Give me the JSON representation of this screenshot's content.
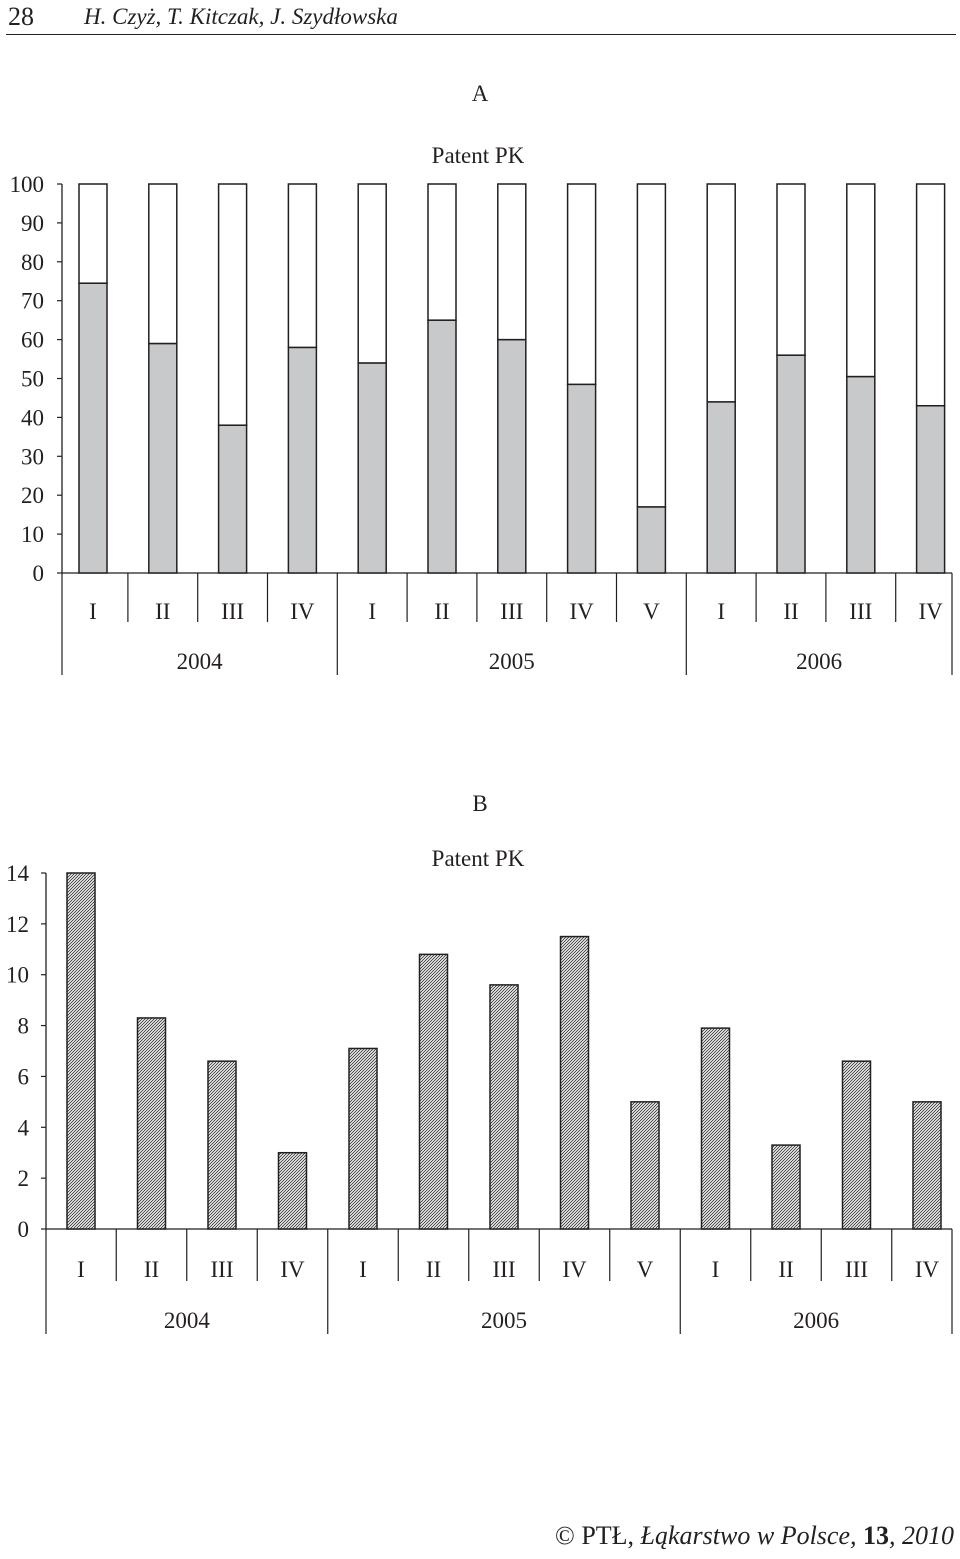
{
  "header": {
    "page_number": "28",
    "authors": "H. Czyż, T. Kitczak, J. Szydłowska"
  },
  "footer": {
    "copyright": "©",
    "org": "PTŁ, ",
    "journal": "Łąkarstwo w Polsce",
    "sep": ", ",
    "volume": "13",
    "year": ", 2010"
  },
  "colors": {
    "fill_gray": "#c8c9cb",
    "ink": "#231f20"
  },
  "chart_data": [
    {
      "id": "A",
      "type": "bar",
      "stacked": true,
      "panel_label": "A",
      "title": "Patent PK",
      "categories": [
        "I",
        "II",
        "III",
        "IV",
        "I",
        "II",
        "III",
        "IV",
        "V",
        "I",
        "II",
        "III",
        "IV"
      ],
      "groups": [
        {
          "label": "2004",
          "count": 4
        },
        {
          "label": "2005",
          "count": 5
        },
        {
          "label": "2006",
          "count": 4
        }
      ],
      "series": [
        {
          "fill": "gray",
          "values": [
            74.5,
            59,
            38,
            58,
            54,
            65,
            60,
            48.5,
            17,
            44,
            56,
            50.5,
            43
          ]
        },
        {
          "fill": "white",
          "values": [
            25.5,
            41,
            62,
            42,
            46,
            35,
            40,
            51.5,
            83,
            56,
            44,
            49.5,
            57
          ]
        }
      ],
      "yticks": [
        0,
        10,
        20,
        30,
        40,
        50,
        60,
        70,
        80,
        90,
        100
      ],
      "ylim": [
        0,
        100
      ],
      "xlabel": "",
      "ylabel": "",
      "grid": false
    },
    {
      "id": "B",
      "type": "bar",
      "panel_label": "B",
      "title": "Patent PK",
      "fill": "hatched",
      "categories": [
        "I",
        "II",
        "III",
        "IV",
        "I",
        "II",
        "III",
        "IV",
        "V",
        "I",
        "II",
        "III",
        "IV"
      ],
      "groups": [
        {
          "label": "2004",
          "count": 4
        },
        {
          "label": "2005",
          "count": 5
        },
        {
          "label": "2006",
          "count": 4
        }
      ],
      "values": [
        14,
        8.3,
        6.6,
        3,
        7.1,
        10.8,
        9.6,
        11.5,
        5,
        7.9,
        3.3,
        6.6,
        5
      ],
      "yticks": [
        0,
        2,
        4,
        6,
        8,
        10,
        12,
        14
      ],
      "ylim": [
        0,
        14
      ],
      "xlabel": "",
      "ylabel": "",
      "grid": false
    }
  ]
}
